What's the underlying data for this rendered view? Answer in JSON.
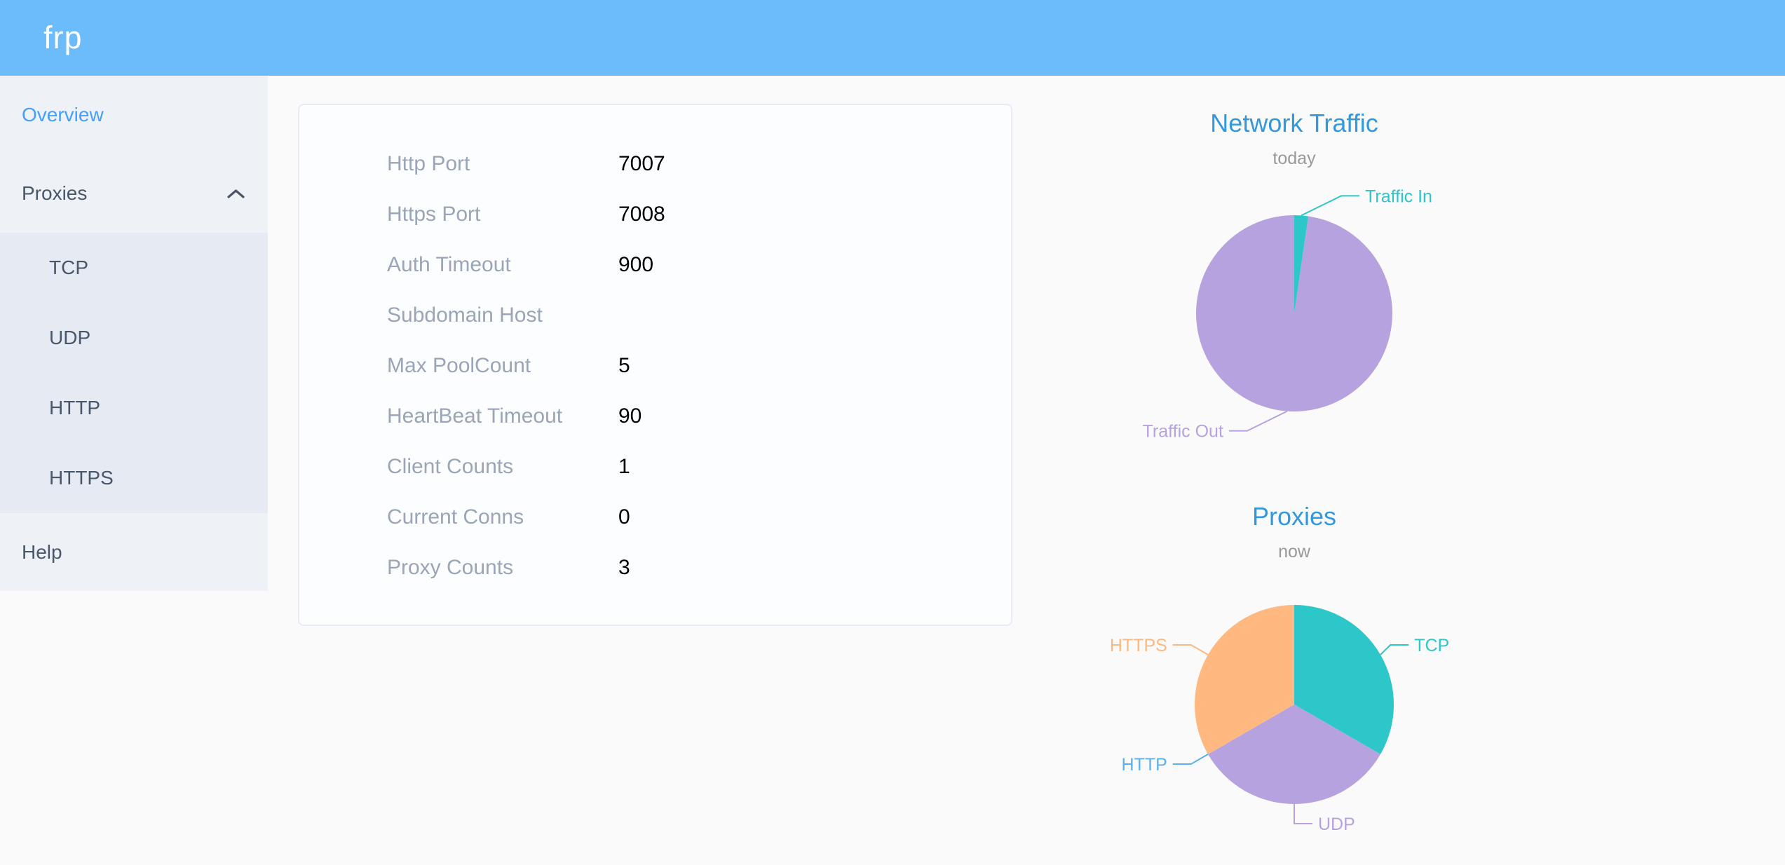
{
  "header": {
    "logo": "frp",
    "bg_color": "#6cbcfc"
  },
  "sidebar": {
    "overview": "Overview",
    "proxies": "Proxies",
    "tcp": "TCP",
    "udp": "UDP",
    "http": "HTTP",
    "https": "HTTPS",
    "help": "Help",
    "active_item": "Overview",
    "active_color": "#459ffc",
    "chevron_icon": "chevron-up"
  },
  "server_info": {
    "rows": [
      {
        "label": "Http Port",
        "value": "7007"
      },
      {
        "label": "Https Port",
        "value": "7008"
      },
      {
        "label": "Auth Timeout",
        "value": "900"
      },
      {
        "label": "Subdomain Host",
        "value": ""
      },
      {
        "label": "Max PoolCount",
        "value": "5"
      },
      {
        "label": "HeartBeat Timeout",
        "value": "90"
      },
      {
        "label": "Client Counts",
        "value": "1"
      },
      {
        "label": "Current Conns",
        "value": "0"
      },
      {
        "label": "Proxy Counts",
        "value": "3"
      }
    ]
  },
  "chart_data": [
    {
      "type": "pie",
      "title": "Network Traffic",
      "subtitle": "today",
      "title_color": "#3398dc",
      "subtitle_color": "#999999",
      "start_angle_deg": 0,
      "clockwise": true,
      "label_position": "outside",
      "values_are_percent_estimates": true,
      "slices": [
        {
          "name": "Traffic In",
          "value": 2.3,
          "color": "#2ec7c9",
          "label_dx": 55
        },
        {
          "name": "Traffic Out",
          "value": 97.7,
          "color": "#b6a2de",
          "label_dx": -55
        }
      ]
    },
    {
      "type": "pie",
      "title": "Proxies",
      "subtitle": "now",
      "title_color": "#3398dc",
      "subtitle_color": "#999999",
      "start_angle_deg": 0,
      "clockwise": true,
      "label_position": "outside",
      "values_are_percent_estimates": false,
      "slices": [
        {
          "name": "TCP",
          "value": 1,
          "color": "#2ec7c9",
          "label_dx": -10
        },
        {
          "name": "UDP",
          "value": 1,
          "color": "#b6a2de",
          "label_dx": 0
        },
        {
          "name": "HTTP",
          "value": 0,
          "color": "#5ab1ef",
          "label_dx": 0
        },
        {
          "name": "HTTPS",
          "value": 1,
          "color": "#ffb980",
          "label_dx": 0
        }
      ]
    }
  ]
}
